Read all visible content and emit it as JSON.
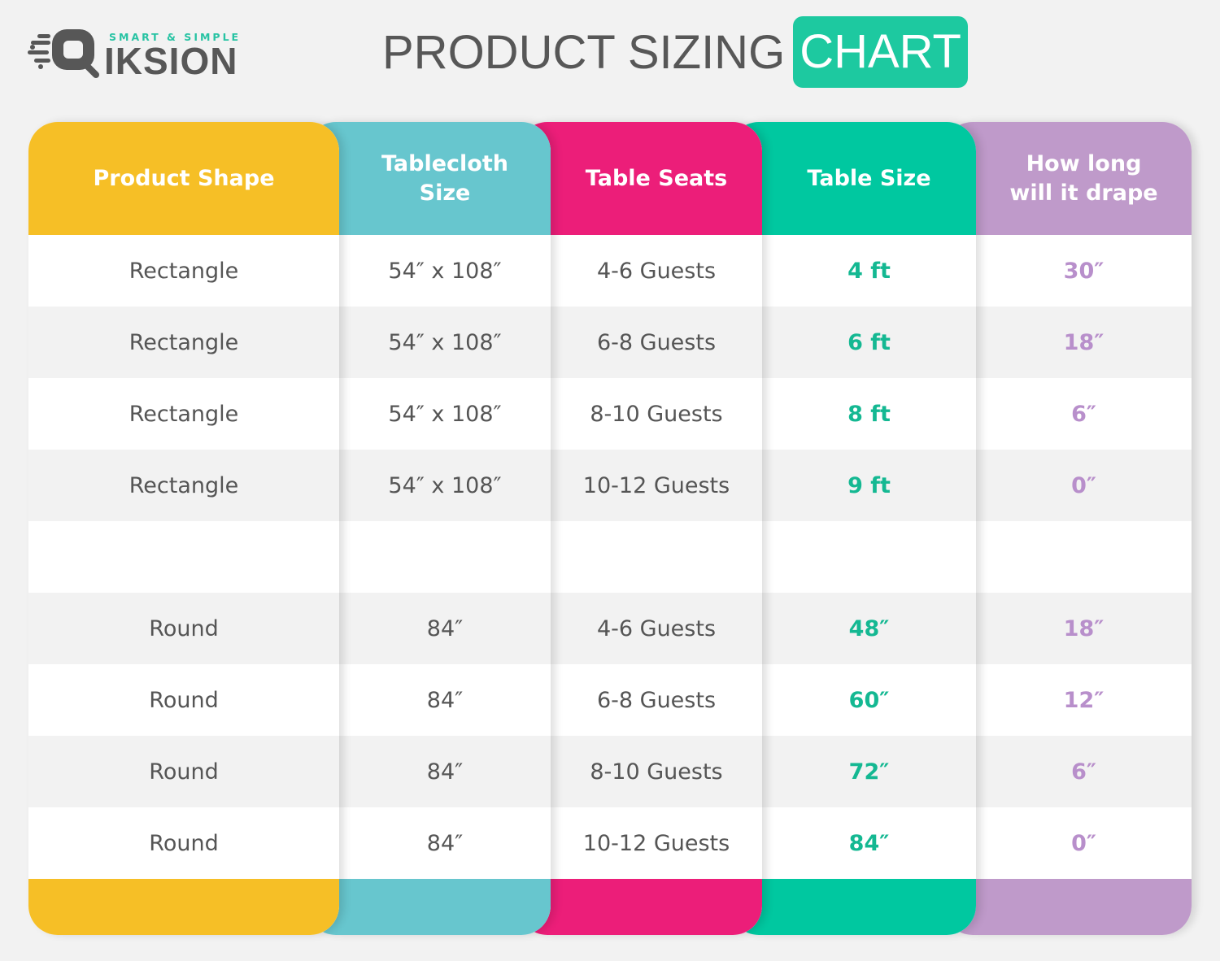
{
  "logo": {
    "tagline": "SMART & SIMPLE",
    "name": "IKSION"
  },
  "title": {
    "main": "PRODUCT SIZING",
    "highlight": "CHART"
  },
  "colors": {
    "shape": "#F6BF26",
    "tablecloth": "#67C6CE",
    "seats": "#EC1E79",
    "size": "#00C8A0",
    "drape": "#BF9ACA",
    "size_text": "#14B892",
    "drape_text": "#B88FCB"
  },
  "columns": [
    {
      "header": "Product Shape",
      "values": [
        "Rectangle",
        "Rectangle",
        "Rectangle",
        "Rectangle",
        "",
        "Round",
        "Round",
        "Round",
        "Round"
      ]
    },
    {
      "header": "Tablecloth\nSize",
      "values": [
        "54″ x 108″",
        "54″ x 108″",
        "54″ x 108″",
        "54″ x 108″",
        "",
        "84″",
        "84″",
        "84″",
        "84″"
      ]
    },
    {
      "header": "Table Seats",
      "values": [
        "4-6 Guests",
        "6-8 Guests",
        "8-10 Guests",
        "10-12 Guests",
        "",
        "4-6 Guests",
        "6-8 Guests",
        "8-10 Guests",
        "10-12 Guests"
      ]
    },
    {
      "header": "Table Size",
      "values": [
        "4 ft",
        "6 ft",
        "8 ft",
        "9 ft",
        "",
        "48″",
        "60″",
        "72″",
        "84″"
      ]
    },
    {
      "header": "How long\nwill it drape",
      "values": [
        "30″",
        "18″",
        "6″",
        "0″",
        "",
        "18″",
        "12″",
        "6″",
        "0″"
      ]
    }
  ]
}
